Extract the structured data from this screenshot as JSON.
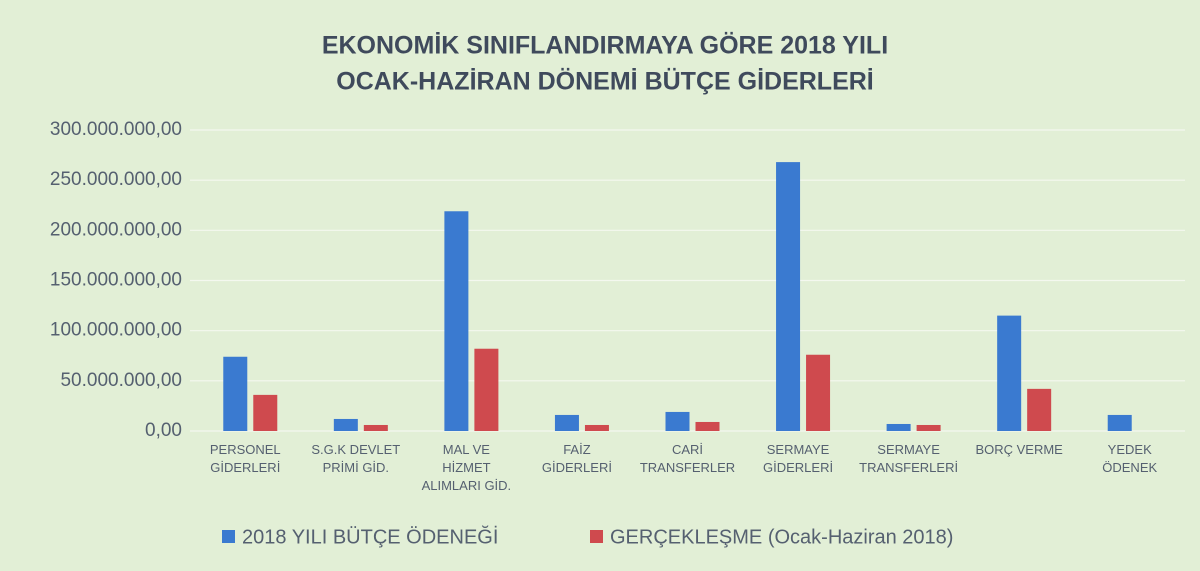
{
  "chart_data": {
    "type": "bar",
    "title": [
      "EKONOMİK SINIFLANDIRMAYA GÖRE 2018 YILI",
      "OCAK-HAZİRAN DÖNEMİ BÜTÇE GİDERLERİ"
    ],
    "categories": [
      [
        "PERSONEL",
        "GİDERLERİ"
      ],
      [
        "S.G.K DEVLET",
        "PRİMİ GİD."
      ],
      [
        "MAL VE",
        "HİZMET",
        "ALIMLARI GİD."
      ],
      [
        "FAİZ",
        "GİDERLERİ"
      ],
      [
        "CARİ",
        "TRANSFERLER"
      ],
      [
        "SERMAYE",
        "GİDERLERİ"
      ],
      [
        "SERMAYE",
        "TRANSFERLERİ"
      ],
      [
        "BORÇ VERME"
      ],
      [
        "YEDEK",
        "ÖDENEK"
      ]
    ],
    "series": [
      {
        "name": "2018 YILI BÜTÇE ÖDENEĞİ",
        "color": "#3a7ad0",
        "values": [
          74000000,
          12000000,
          219000000,
          16000000,
          19000000,
          268000000,
          7000000,
          115000000,
          16000000
        ]
      },
      {
        "name": "GERÇEKLEŞME (Ocak-Haziran 2018)",
        "color": "#cf4a4e",
        "values": [
          36000000,
          6000000,
          82000000,
          6000000,
          9000000,
          76000000,
          6000000,
          42000000,
          0
        ]
      }
    ],
    "ylim": [
      0,
      300000000
    ],
    "yticks": [
      {
        "value": 0,
        "label": "0,00"
      },
      {
        "value": 50000000,
        "label": "50.000.000,00"
      },
      {
        "value": 100000000,
        "label": "100.000.000,00"
      },
      {
        "value": 150000000,
        "label": "150.000.000,00"
      },
      {
        "value": 200000000,
        "label": "200.000.000,00"
      },
      {
        "value": 250000000,
        "label": "250.000.000,00"
      },
      {
        "value": 300000000,
        "label": "300.000.000,00"
      }
    ],
    "grid": true,
    "legend": "bottom"
  }
}
